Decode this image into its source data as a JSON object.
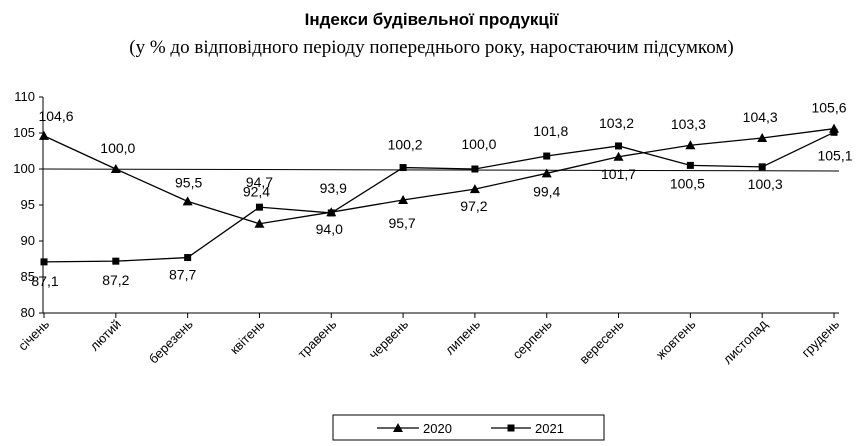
{
  "chart_data": {
    "type": "line",
    "title": "Індекси будівельної продукції",
    "subtitle": "(у % до відповідного періоду попереднього року, наростаючим підсумком)",
    "categories": [
      "січень",
      "лютий",
      "березень",
      "квітень",
      "травень",
      "червень",
      "липень",
      "серпень",
      "вересень",
      "жовтень",
      "листопад",
      "грудень"
    ],
    "series": [
      {
        "name": "2020",
        "marker": "triangle",
        "values": [
          104.6,
          100.0,
          95.5,
          92.4,
          94.0,
          95.7,
          97.2,
          99.4,
          101.7,
          103.3,
          104.3,
          105.6
        ],
        "labels": [
          "104,6",
          "100,0",
          "95,5",
          "92,4",
          "94,0",
          "95,7",
          "97,2",
          "99,4",
          "101,7",
          "103,3",
          "104,3",
          "105,6"
        ]
      },
      {
        "name": "2021",
        "marker": "square",
        "values": [
          87.1,
          87.2,
          87.7,
          94.7,
          93.9,
          100.2,
          100.0,
          101.8,
          103.2,
          100.5,
          100.3,
          105.1
        ],
        "labels": [
          "87,1",
          "87,2",
          "87,7",
          "94,7",
          "93,9",
          "100,2",
          "100,0",
          "101,8",
          "103,2",
          "100,5",
          "100,3",
          "105,1"
        ]
      }
    ],
    "yticks": [
      80,
      85,
      90,
      95,
      100,
      105,
      110
    ],
    "ylim": [
      80,
      110
    ],
    "reference_line": 100,
    "grid": false,
    "legend_position": "bottom-center",
    "line_color": "#000000"
  }
}
